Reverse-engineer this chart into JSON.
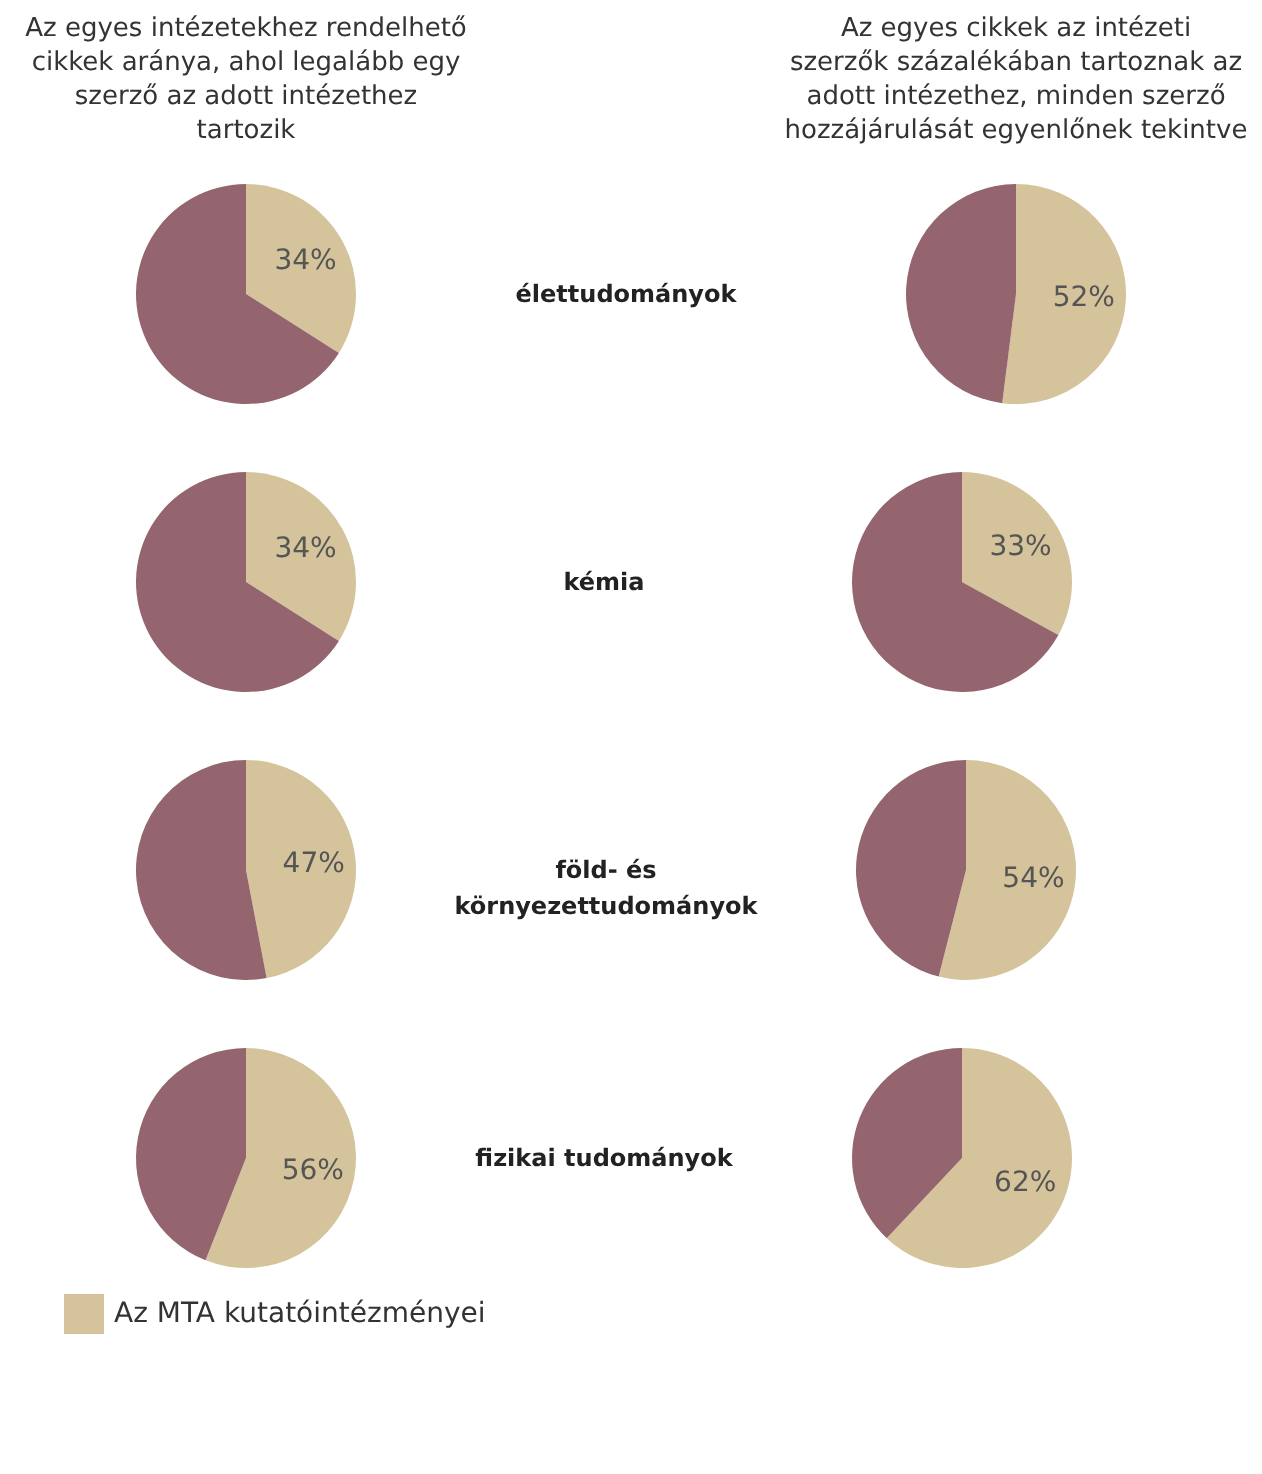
{
  "chart_data": [
    {
      "type": "pie",
      "title": "Az egyes intézetekhez rendelhető cikkek aránya, ahol legalább egy szerző az adott intézethez tartozik",
      "categories": [
        "Az MTA kutatóintézményei",
        null
      ],
      "values": [
        34,
        66
      ],
      "colors": [
        "#d5c39b",
        "#94646f"
      ],
      "value_labels": [
        "34%",
        null
      ],
      "legend": "bottom"
    },
    {
      "type": "other",
      "title": "élettudományok"
    },
    {
      "type": "pie",
      "title": "Az egyes cikkek az intézeti szerzők százalékában tartoznak az adott intézethez, minden szerző hozzájárulását egyenlőnek tekintve",
      "categories": [
        null,
        null
      ],
      "values": [
        52,
        48
      ],
      "colors": [
        "#d5c39b",
        "#94646f"
      ],
      "value_labels": [
        "52%",
        null
      ]
    },
    {
      "type": "pie",
      "categories": [
        null,
        null
      ],
      "values": [
        34,
        66
      ],
      "colors": [
        "#d5c39b",
        "#94646f"
      ],
      "value_labels": [
        "34%",
        null
      ]
    },
    {
      "type": "other",
      "title": "kémia"
    },
    {
      "type": "pie",
      "categories": [
        null,
        null
      ],
      "values": [
        33,
        67
      ],
      "colors": [
        "#d5c39b",
        "#94646f"
      ],
      "value_labels": [
        "33%",
        null
      ]
    },
    {
      "type": "pie",
      "categories": [
        null,
        null
      ],
      "values": [
        47,
        53
      ],
      "colors": [
        "#d5c39b",
        "#94646f"
      ],
      "value_labels": [
        "47%",
        null
      ]
    },
    {
      "type": "other",
      "title": "föld- és környezettudományok"
    },
    {
      "type": "pie",
      "categories": [
        null,
        null
      ],
      "values": [
        54,
        46
      ],
      "colors": [
        "#d5c39b",
        "#94646f"
      ],
      "value_labels": [
        "54%",
        null
      ]
    },
    {
      "type": "pie",
      "categories": [
        null,
        null
      ],
      "values": [
        56,
        44
      ],
      "colors": [
        "#d5c39b",
        "#94646f"
      ],
      "value_labels": [
        "56%",
        null
      ]
    },
    {
      "type": "other",
      "title": "fizikai tudományok"
    },
    {
      "type": "pie",
      "categories": [
        null,
        null
      ],
      "values": [
        62,
        38
      ],
      "colors": [
        "#d5c39b",
        "#94646f"
      ],
      "value_labels": [
        "62%",
        null
      ]
    }
  ]
}
